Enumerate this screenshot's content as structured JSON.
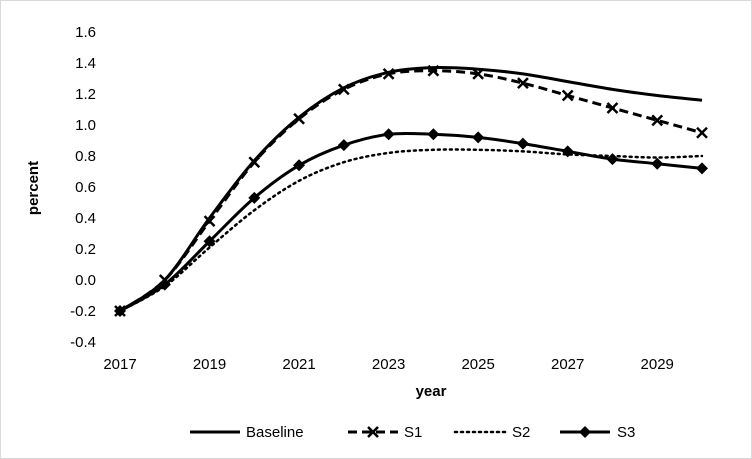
{
  "chart_data": {
    "type": "line",
    "title": "",
    "xlabel": "year",
    "ylabel": "percent",
    "xlim": [
      2017,
      2030
    ],
    "ylim": [
      -0.4,
      1.6
    ],
    "x_ticks": [
      "2017",
      "2019",
      "2021",
      "2023",
      "2025",
      "2027",
      "2029"
    ],
    "y_ticks": [
      "-0.4",
      "-0.2",
      "0.0",
      "0.2",
      "0.4",
      "0.6",
      "0.8",
      "1.0",
      "1.2",
      "1.4",
      "1.6"
    ],
    "grid": false,
    "legend_position": "bottom",
    "x": [
      2017,
      2018,
      2019,
      2020,
      2021,
      2022,
      2023,
      2024,
      2025,
      2026,
      2027,
      2028,
      2029,
      2030
    ],
    "series": [
      {
        "name": "Baseline",
        "style": "solid",
        "marker": "none",
        "values": [
          -0.2,
          0.0,
          0.4,
          0.77,
          1.05,
          1.24,
          1.34,
          1.37,
          1.36,
          1.33,
          1.28,
          1.23,
          1.19,
          1.16
        ]
      },
      {
        "name": "S1",
        "style": "dashed",
        "marker": "x",
        "values": [
          -0.2,
          0.0,
          0.38,
          0.76,
          1.04,
          1.23,
          1.33,
          1.35,
          1.33,
          1.27,
          1.19,
          1.11,
          1.03,
          0.95
        ]
      },
      {
        "name": "S2",
        "style": "dotted",
        "marker": "none",
        "values": [
          -0.2,
          -0.04,
          0.21,
          0.45,
          0.64,
          0.76,
          0.82,
          0.84,
          0.84,
          0.83,
          0.81,
          0.8,
          0.79,
          0.8
        ]
      },
      {
        "name": "S3",
        "style": "solid",
        "marker": "diamond",
        "values": [
          -0.2,
          -0.03,
          0.25,
          0.53,
          0.74,
          0.87,
          0.94,
          0.94,
          0.92,
          0.88,
          0.83,
          0.78,
          0.75,
          0.72
        ]
      }
    ]
  },
  "colors": {
    "line": "#000000",
    "axis": "#000000",
    "border": "#d9d9d9",
    "background": "#ffffff"
  }
}
